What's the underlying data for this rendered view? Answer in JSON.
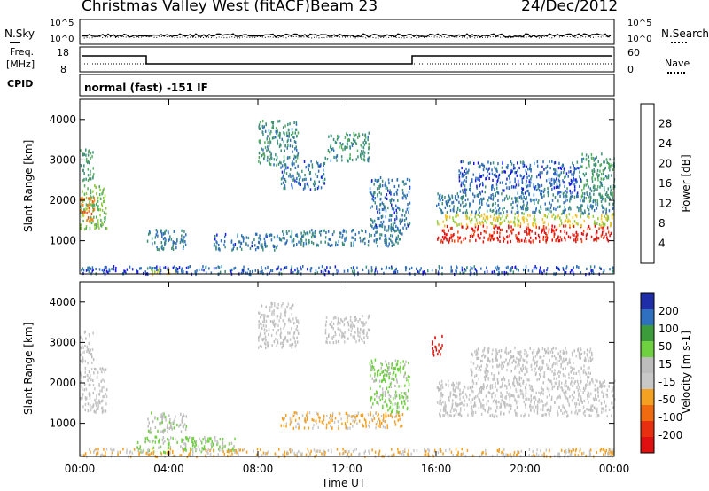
{
  "header": {
    "site": "Christmas Valley West (fitACF)",
    "beam": "Beam 23",
    "date": "24/Dec/2012"
  },
  "nsky_panel": {
    "left_label": "N.Sky",
    "left_ticks": [
      "10^5",
      "10^0"
    ],
    "right_ticks": [
      "10^5",
      "10^0"
    ],
    "right_label": "N.Search"
  },
  "freq_panel": {
    "left_label_1": "Freq.",
    "left_label_2": "[MHz]",
    "left_ticks": [
      "18",
      "8"
    ],
    "right_ticks": [
      "60",
      "0"
    ],
    "right_label": "Nave"
  },
  "cpid_panel": {
    "label": "CPID",
    "text": "normal (fast) -151 IF"
  },
  "colors": {
    "power": [
      "#1a1ae6",
      "#2f6fb8",
      "#3d8f7a",
      "#53ad5f",
      "#8ec83a",
      "#f2c22a",
      "#f7891a",
      "#f04a12",
      "#e01010"
    ],
    "velocity": [
      "#1f2ea8",
      "#3070c0",
      "#3c9c3c",
      "#6fd040",
      "#bdbdbd",
      "#c8c8c8",
      "#f4a020",
      "#f06a10",
      "#e83010",
      "#e01010"
    ]
  },
  "chart_data": [
    {
      "type": "heatmap",
      "name": "power",
      "ylabel": "Slant Range [km]",
      "y_ticks": [
        "1000",
        "2000",
        "3000",
        "4000"
      ],
      "ylim": [
        180,
        4500
      ],
      "colorbar_label": "Power [dB]",
      "colorbar_ticks": [
        "4",
        "8",
        "12",
        "16",
        "20",
        "24",
        "28"
      ],
      "colorbar_range": [
        0,
        32
      ],
      "regions": [
        {
          "t0": 0.0,
          "t1": 1.2,
          "r0": 1300,
          "r1": 2400,
          "v": 14
        },
        {
          "t0": 0.0,
          "t1": 0.7,
          "r0": 1500,
          "r1": 2100,
          "v": 24
        },
        {
          "t0": 0.0,
          "t1": 0.6,
          "r0": 2500,
          "r1": 3300,
          "v": 10
        },
        {
          "t0": 3.0,
          "t1": 4.8,
          "r0": 800,
          "r1": 1300,
          "v": 7
        },
        {
          "t0": 6.0,
          "t1": 9.0,
          "r0": 800,
          "r1": 1200,
          "v": 6
        },
        {
          "t0": 8.0,
          "t1": 9.8,
          "r0": 2900,
          "r1": 4000,
          "v": 9
        },
        {
          "t0": 9.0,
          "t1": 11.0,
          "r0": 2300,
          "r1": 3000,
          "v": 6
        },
        {
          "t0": 11.0,
          "t1": 13.0,
          "r0": 3000,
          "r1": 3700,
          "v": 9
        },
        {
          "t0": 9.0,
          "t1": 14.5,
          "r0": 900,
          "r1": 1300,
          "v": 7
        },
        {
          "t0": 13.0,
          "t1": 14.8,
          "r0": 1300,
          "r1": 2600,
          "v": 6
        },
        {
          "t0": 3.0,
          "t1": 4.5,
          "r0": 200,
          "r1": 350,
          "v": 18
        },
        {
          "t0": 0.0,
          "t1": 15.0,
          "r0": 200,
          "r1": 400,
          "v": 5
        },
        {
          "t0": 16.0,
          "t1": 24.0,
          "r0": 1000,
          "r1": 1400,
          "v": 30
        },
        {
          "t0": 16.0,
          "t1": 24.0,
          "r0": 1400,
          "r1": 1700,
          "v": 18
        },
        {
          "t0": 16.0,
          "t1": 24.0,
          "r0": 1700,
          "r1": 2200,
          "v": 7
        },
        {
          "t0": 17.0,
          "t1": 22.5,
          "r0": 2200,
          "r1": 3000,
          "v": 5
        },
        {
          "t0": 22.5,
          "t1": 24.0,
          "r0": 2000,
          "r1": 3200,
          "v": 10
        },
        {
          "t0": 15.0,
          "t1": 24.0,
          "r0": 200,
          "r1": 400,
          "v": 5
        }
      ]
    },
    {
      "type": "heatmap",
      "name": "velocity",
      "ylabel": "Slant Range [km]",
      "y_ticks": [
        "1000",
        "2000",
        "3000",
        "4000"
      ],
      "ylim": [
        180,
        4500
      ],
      "colorbar_label": "Velocity [m s-1]",
      "colorbar_ticks": [
        "200",
        "100",
        "50",
        "15",
        "-15",
        "-50",
        "-100",
        "-200"
      ],
      "colorbar_range": [
        -250,
        250
      ],
      "regions": [
        {
          "t0": 0.0,
          "t1": 1.2,
          "r0": 1300,
          "r1": 2400,
          "v": 0
        },
        {
          "t0": 0.0,
          "t1": 0.6,
          "r0": 2500,
          "r1": 3300,
          "v": 0
        },
        {
          "t0": 3.0,
          "t1": 4.8,
          "r0": 800,
          "r1": 1300,
          "v": 30
        },
        {
          "t0": 2.5,
          "t1": 7.0,
          "r0": 300,
          "r1": 700,
          "v": 60
        },
        {
          "t0": 8.0,
          "t1": 9.8,
          "r0": 2900,
          "r1": 4000,
          "v": 0
        },
        {
          "t0": 11.0,
          "t1": 13.0,
          "r0": 3000,
          "r1": 3700,
          "v": 0
        },
        {
          "t0": 9.0,
          "t1": 14.5,
          "r0": 900,
          "r1": 1300,
          "v": -60
        },
        {
          "t0": 13.0,
          "t1": 14.8,
          "r0": 1300,
          "r1": 2600,
          "v": 60
        },
        {
          "t0": 0.0,
          "t1": 24.0,
          "r0": 200,
          "r1": 400,
          "v": -50
        },
        {
          "t0": 16.0,
          "t1": 24.0,
          "r0": 1200,
          "r1": 2100,
          "v": 0
        },
        {
          "t0": 17.5,
          "t1": 23.0,
          "r0": 2100,
          "r1": 2900,
          "v": 0
        },
        {
          "t0": 15.8,
          "t1": 16.3,
          "r0": 2700,
          "r1": 3200,
          "v": -220
        }
      ]
    }
  ],
  "x_axis": {
    "ticks": [
      "00:00",
      "04:00",
      "08:00",
      "12:00",
      "16:00",
      "20:00",
      "00:00"
    ],
    "label": "Time UT",
    "xlim_hours": [
      0,
      24
    ]
  }
}
